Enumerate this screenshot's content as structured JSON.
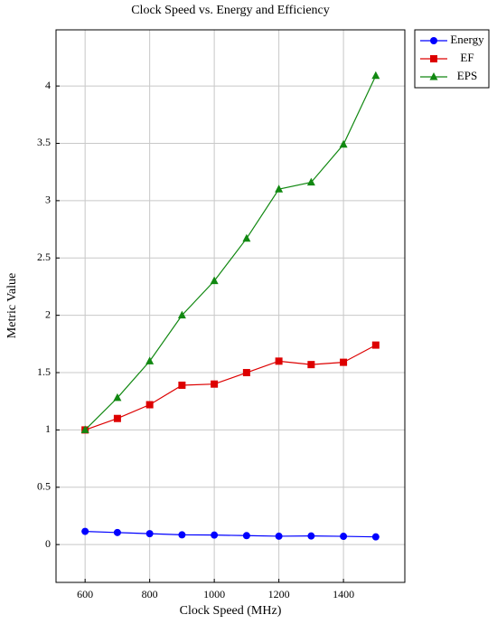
{
  "chart_data": {
    "type": "line",
    "title": "Clock Speed vs. Energy and Efficiency",
    "x_label": "Clock Speed (MHz)",
    "y_label": "Metric Value",
    "x": [
      600,
      700,
      800,
      900,
      1000,
      1100,
      1200,
      1300,
      1400,
      1500
    ],
    "series": [
      {
        "name": "Energy",
        "color": "#0000ff",
        "marker": "circle",
        "values": [
          0.115,
          0.105,
          0.095,
          0.085,
          0.083,
          0.078,
          0.073,
          0.075,
          0.072,
          0.067
        ]
      },
      {
        "name": "EF",
        "color": "#dd0000",
        "marker": "square",
        "values": [
          1.0,
          1.1,
          1.22,
          1.39,
          1.4,
          1.5,
          1.6,
          1.57,
          1.59,
          1.74
        ]
      },
      {
        "name": "EPS",
        "color": "#118811",
        "marker": "triangle",
        "values": [
          1.0,
          1.28,
          1.6,
          2.0,
          2.3,
          2.67,
          3.1,
          3.16,
          3.49,
          4.09
        ]
      }
    ],
    "xlim": [
      510,
      1590
    ],
    "ylim": [
      -0.33,
      4.49
    ],
    "xticks": [
      600,
      800,
      1000,
      1200,
      1400
    ],
    "yticks": [
      0,
      0.5,
      1,
      1.5,
      2,
      2.5,
      3,
      3.5,
      4
    ],
    "grid": true,
    "legend": "outside-top-right"
  }
}
